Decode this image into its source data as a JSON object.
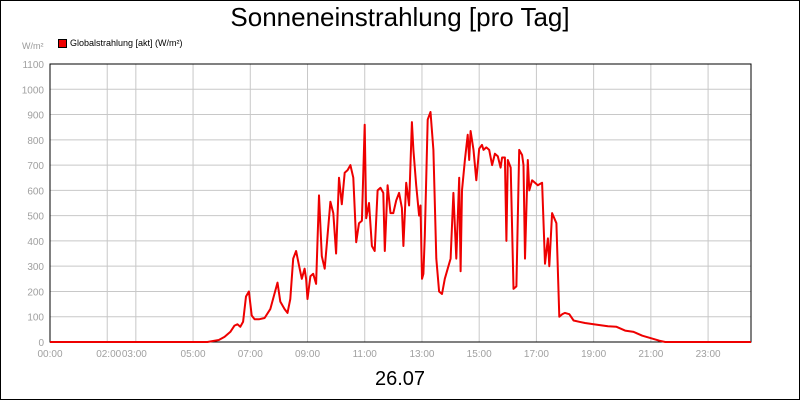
{
  "chart_data": {
    "type": "line",
    "title": "Sonneneinstrahlung [pro Tag]",
    "unit_label": "W/m²",
    "xlabel": "26.07",
    "ylim": [
      0,
      1100
    ],
    "xlim": [
      0,
      24.5
    ],
    "yticks": [
      0,
      100,
      200,
      300,
      400,
      500,
      600,
      700,
      800,
      900,
      1000,
      1100
    ],
    "xticks": [
      {
        "h": 0,
        "label": "00:00"
      },
      {
        "h": 2,
        "label": "02:00"
      },
      {
        "h": 3,
        "label": "03:00"
      },
      {
        "h": 5,
        "label": "05:00"
      },
      {
        "h": 7,
        "label": "07:00"
      },
      {
        "h": 9,
        "label": "09:00"
      },
      {
        "h": 11,
        "label": "11:00"
      },
      {
        "h": 13,
        "label": "13:00"
      },
      {
        "h": 15,
        "label": "15:00"
      },
      {
        "h": 17,
        "label": "17:00"
      },
      {
        "h": 19,
        "label": "19:00"
      },
      {
        "h": 21,
        "label": "21:00"
      },
      {
        "h": 23,
        "label": "23:00"
      }
    ],
    "grid": true,
    "legend_position": "top-left",
    "series": [
      {
        "name": "Globalstrahlung [akt] (W/m²)",
        "color": "#ee0000",
        "points": [
          [
            0,
            0
          ],
          [
            5.5,
            0
          ],
          [
            5.9,
            8
          ],
          [
            6.1,
            20
          ],
          [
            6.3,
            40
          ],
          [
            6.45,
            65
          ],
          [
            6.55,
            70
          ],
          [
            6.65,
            60
          ],
          [
            6.75,
            80
          ],
          [
            6.85,
            180
          ],
          [
            6.95,
            200
          ],
          [
            7.05,
            105
          ],
          [
            7.15,
            90
          ],
          [
            7.3,
            90
          ],
          [
            7.5,
            95
          ],
          [
            7.7,
            130
          ],
          [
            7.95,
            235
          ],
          [
            8.05,
            160
          ],
          [
            8.2,
            130
          ],
          [
            8.3,
            115
          ],
          [
            8.4,
            170
          ],
          [
            8.5,
            330
          ],
          [
            8.6,
            360
          ],
          [
            8.7,
            305
          ],
          [
            8.8,
            250
          ],
          [
            8.9,
            290
          ],
          [
            8.95,
            250
          ],
          [
            9.0,
            170
          ],
          [
            9.1,
            260
          ],
          [
            9.2,
            270
          ],
          [
            9.3,
            230
          ],
          [
            9.4,
            580
          ],
          [
            9.5,
            340
          ],
          [
            9.6,
            290
          ],
          [
            9.7,
            420
          ],
          [
            9.8,
            555
          ],
          [
            9.9,
            510
          ],
          [
            10.0,
            350
          ],
          [
            10.1,
            650
          ],
          [
            10.2,
            545
          ],
          [
            10.3,
            670
          ],
          [
            10.4,
            680
          ],
          [
            10.5,
            700
          ],
          [
            10.6,
            650
          ],
          [
            10.7,
            395
          ],
          [
            10.8,
            470
          ],
          [
            10.9,
            480
          ],
          [
            11.0,
            860
          ],
          [
            11.05,
            490
          ],
          [
            11.15,
            550
          ],
          [
            11.25,
            380
          ],
          [
            11.35,
            360
          ],
          [
            11.45,
            600
          ],
          [
            11.55,
            610
          ],
          [
            11.65,
            590
          ],
          [
            11.7,
            360
          ],
          [
            11.8,
            620
          ],
          [
            11.9,
            510
          ],
          [
            12.0,
            510
          ],
          [
            12.1,
            560
          ],
          [
            12.2,
            590
          ],
          [
            12.3,
            530
          ],
          [
            12.35,
            380
          ],
          [
            12.45,
            630
          ],
          [
            12.55,
            540
          ],
          [
            12.65,
            870
          ],
          [
            12.7,
            760
          ],
          [
            12.8,
            620
          ],
          [
            12.9,
            500
          ],
          [
            12.95,
            540
          ],
          [
            13.0,
            250
          ],
          [
            13.05,
            270
          ],
          [
            13.1,
            420
          ],
          [
            13.2,
            880
          ],
          [
            13.3,
            910
          ],
          [
            13.4,
            760
          ],
          [
            13.5,
            330
          ],
          [
            13.6,
            200
          ],
          [
            13.7,
            190
          ],
          [
            13.8,
            250
          ],
          [
            13.9,
            290
          ],
          [
            14.0,
            330
          ],
          [
            14.1,
            590
          ],
          [
            14.2,
            330
          ],
          [
            14.3,
            650
          ],
          [
            14.35,
            280
          ],
          [
            14.4,
            600
          ],
          [
            14.5,
            720
          ],
          [
            14.6,
            820
          ],
          [
            14.65,
            720
          ],
          [
            14.7,
            835
          ],
          [
            14.8,
            760
          ],
          [
            14.9,
            640
          ],
          [
            15.0,
            765
          ],
          [
            15.1,
            780
          ],
          [
            15.15,
            760
          ],
          [
            15.25,
            770
          ],
          [
            15.35,
            760
          ],
          [
            15.45,
            700
          ],
          [
            15.55,
            745
          ],
          [
            15.65,
            735
          ],
          [
            15.75,
            690
          ],
          [
            15.8,
            730
          ],
          [
            15.9,
            730
          ],
          [
            15.95,
            400
          ],
          [
            16.0,
            720
          ],
          [
            16.1,
            690
          ],
          [
            16.2,
            210
          ],
          [
            16.3,
            220
          ],
          [
            16.4,
            760
          ],
          [
            16.5,
            740
          ],
          [
            16.55,
            700
          ],
          [
            16.6,
            330
          ],
          [
            16.7,
            720
          ],
          [
            16.75,
            600
          ],
          [
            16.85,
            640
          ],
          [
            16.95,
            630
          ],
          [
            17.05,
            620
          ],
          [
            17.2,
            630
          ],
          [
            17.3,
            310
          ],
          [
            17.4,
            410
          ],
          [
            17.45,
            300
          ],
          [
            17.55,
            510
          ],
          [
            17.7,
            470
          ],
          [
            17.8,
            100
          ],
          [
            17.9,
            110
          ],
          [
            18.0,
            115
          ],
          [
            18.15,
            110
          ],
          [
            18.3,
            85
          ],
          [
            18.5,
            80
          ],
          [
            18.7,
            75
          ],
          [
            19.0,
            70
          ],
          [
            19.5,
            62
          ],
          [
            19.8,
            60
          ],
          [
            20.1,
            45
          ],
          [
            20.4,
            40
          ],
          [
            20.7,
            25
          ],
          [
            21.0,
            15
          ],
          [
            21.3,
            5
          ],
          [
            21.5,
            0
          ],
          [
            24.5,
            0
          ]
        ]
      }
    ]
  }
}
